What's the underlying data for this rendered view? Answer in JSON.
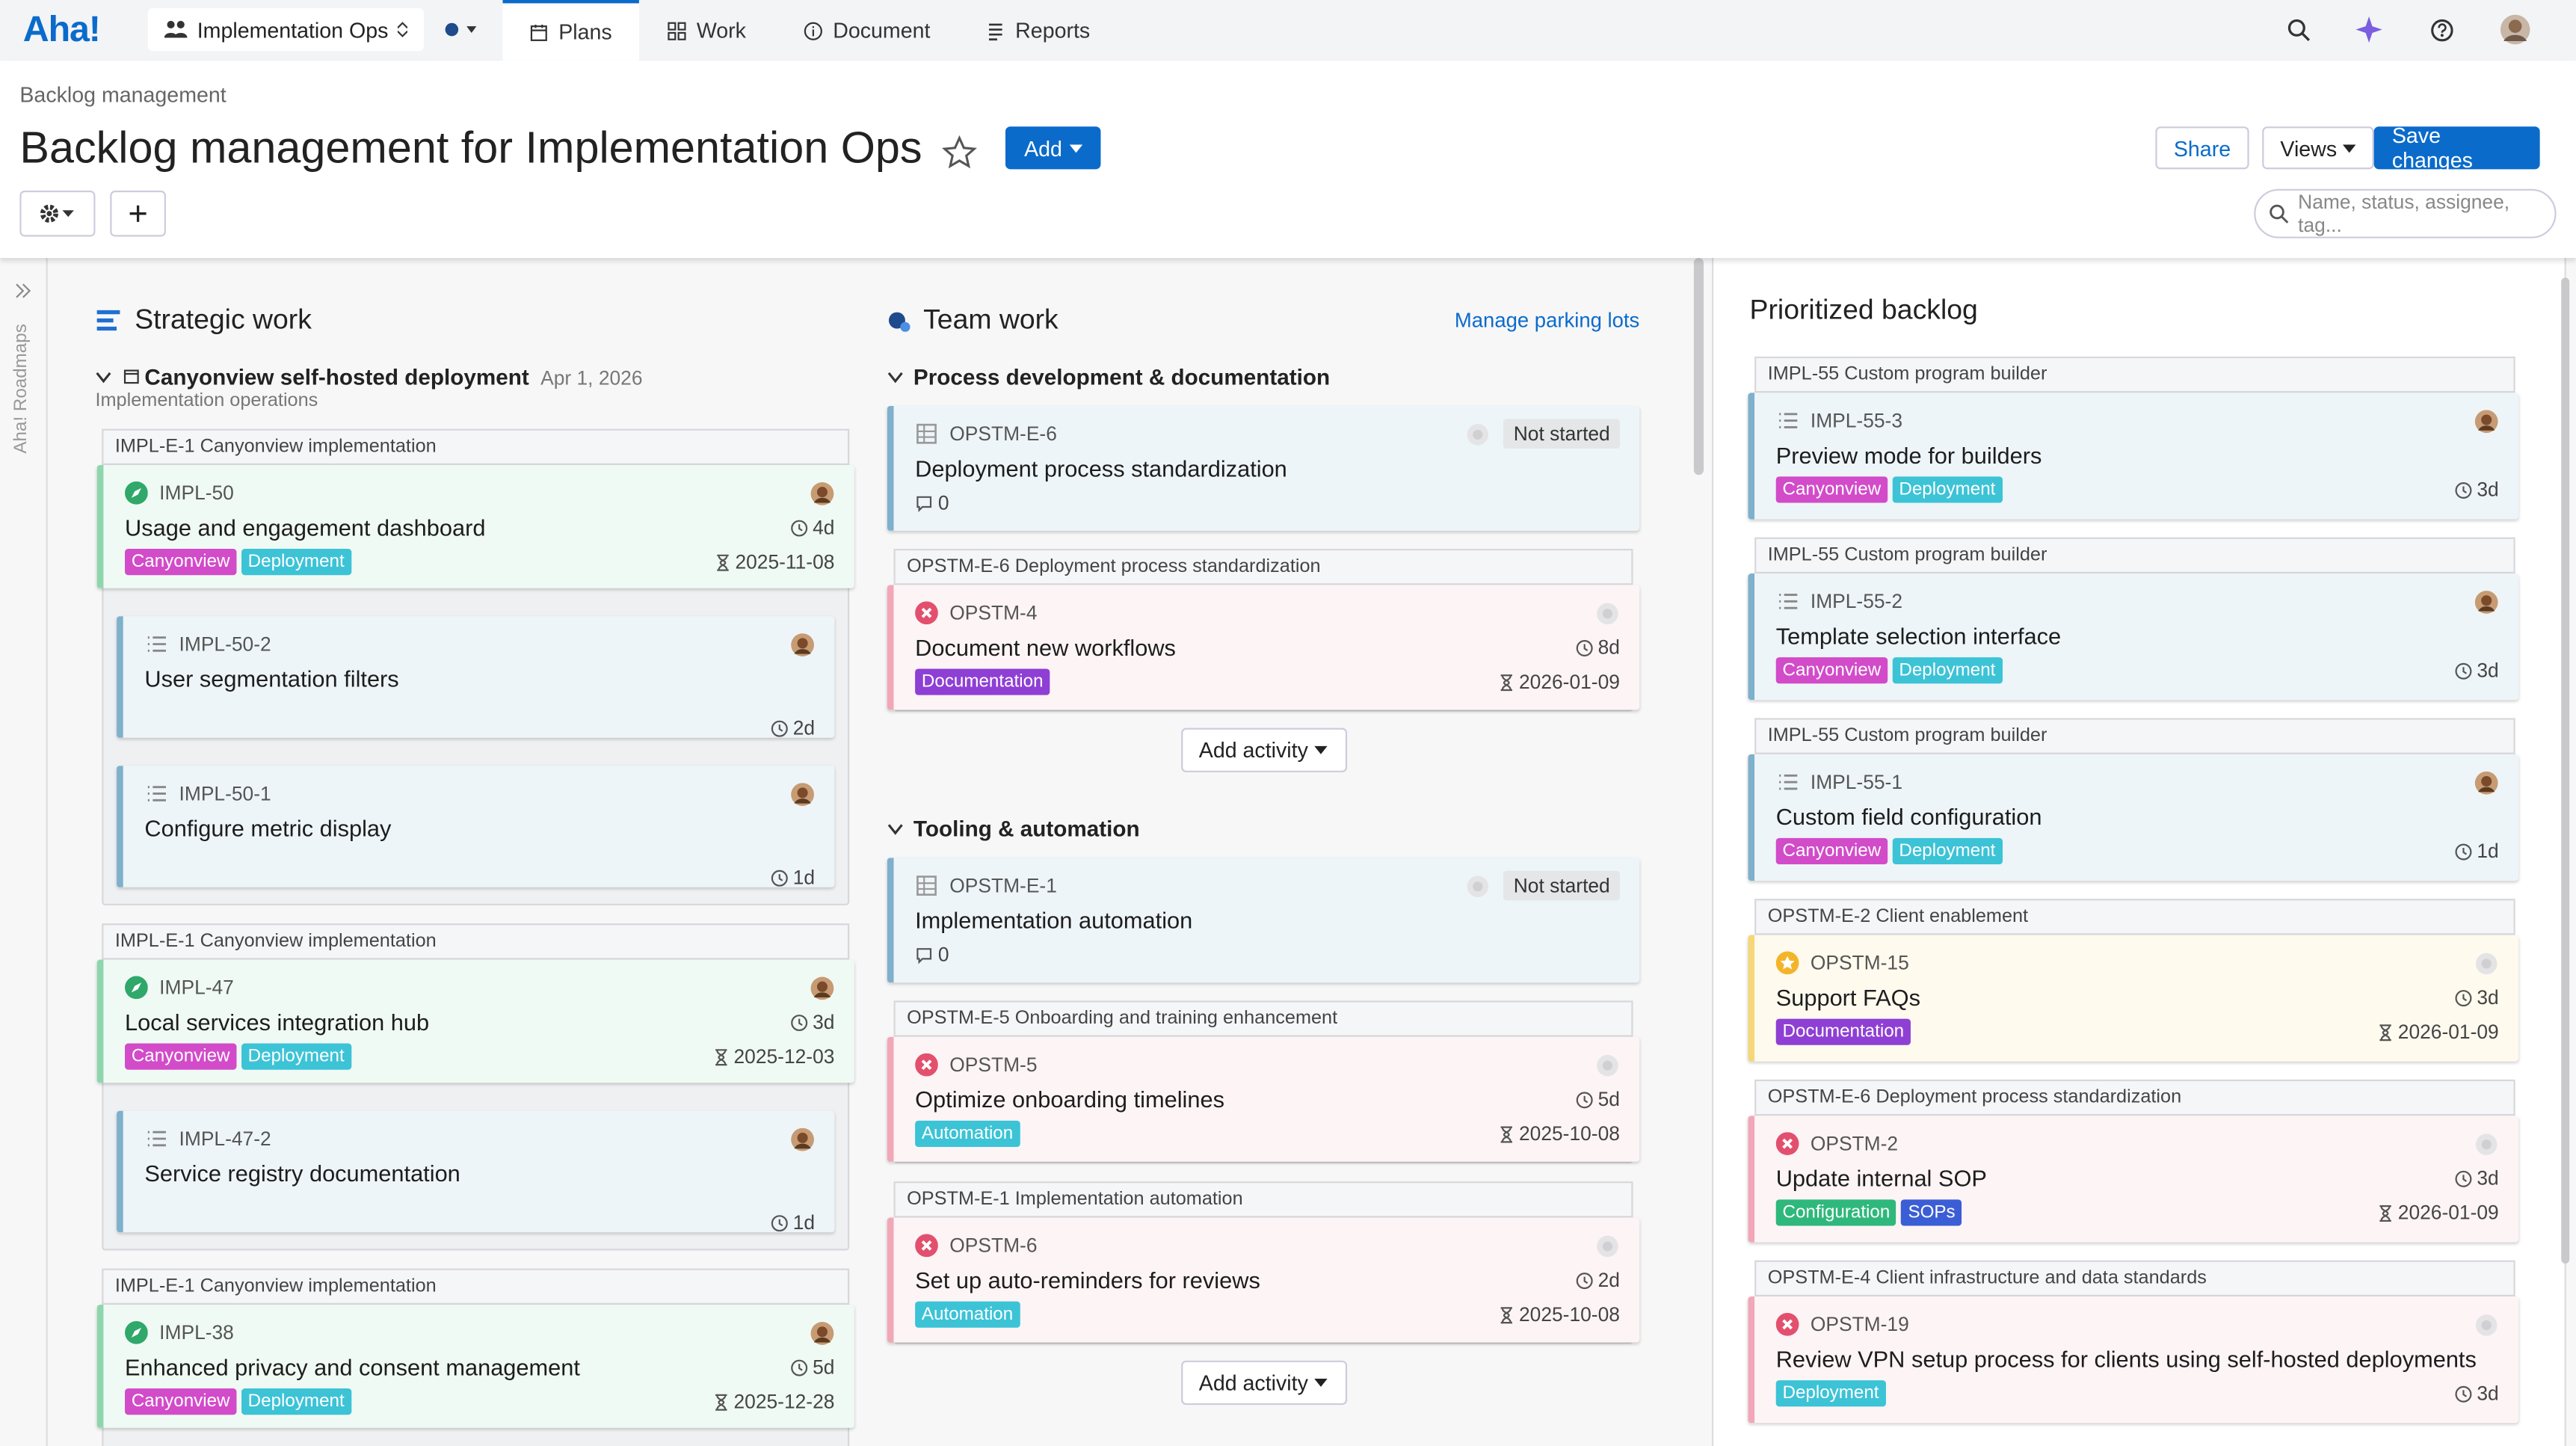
{
  "nav": {
    "logo": "Aha!",
    "workspace": "Implementation Ops",
    "tabs": [
      "Plans",
      "Work",
      "Document",
      "Reports"
    ],
    "active_tab": 0
  },
  "breadcrumb": "Backlog management",
  "title": "Backlog management for Implementation Ops",
  "buttons": {
    "add": "Add",
    "share": "Share",
    "views": "Views",
    "save": "Save changes"
  },
  "search_placeholder": "Name, status, assignee, tag...",
  "sidebar_label": "Aha! Roadmaps",
  "strategic": {
    "title": "Strategic work",
    "initiative": {
      "name": "Canyonview self-hosted deployment",
      "date": "Apr 1, 2026",
      "subtitle": "Implementation operations"
    },
    "groups": [
      {
        "parent": "IMPL-E-1 Canyonview implementation",
        "card": {
          "id": "IMPL-50",
          "title": "Usage and engagement dashboard",
          "icon": "feature",
          "avatar": "photo",
          "color": "#8fd6ad",
          "tags": [
            {
              "name": "Canyonview",
              "color": "#d24bc9"
            },
            {
              "name": "Deployment",
              "color": "#3cc3d6"
            }
          ],
          "estimate": "4d",
          "due": "2025-11-08"
        },
        "children": [
          {
            "id": "IMPL-50-2",
            "title": "User segmentation filters",
            "icon": "requirement",
            "avatar": "photo",
            "color": "#7fb0cc",
            "estimate": "2d"
          },
          {
            "id": "IMPL-50-1",
            "title": "Configure metric display",
            "icon": "requirement",
            "avatar": "photo",
            "color": "#7fb0cc",
            "estimate": "1d"
          }
        ]
      },
      {
        "parent": "IMPL-E-1 Canyonview implementation",
        "card": {
          "id": "IMPL-47",
          "title": "Local services integration hub",
          "icon": "feature",
          "avatar": "photo",
          "color": "#8fd6ad",
          "tags": [
            {
              "name": "Canyonview",
              "color": "#d24bc9"
            },
            {
              "name": "Deployment",
              "color": "#3cc3d6"
            }
          ],
          "estimate": "3d",
          "due": "2025-12-03"
        },
        "children": [
          {
            "id": "IMPL-47-2",
            "title": "Service registry documentation",
            "icon": "requirement",
            "avatar": "photo",
            "color": "#7fb0cc",
            "estimate": "1d"
          }
        ]
      },
      {
        "parent": "IMPL-E-1 Canyonview implementation",
        "card": {
          "id": "IMPL-38",
          "title": "Enhanced privacy and consent management",
          "icon": "feature",
          "avatar": "photo",
          "color": "#8fd6ad",
          "tags": [
            {
              "name": "Canyonview",
              "color": "#d24bc9"
            },
            {
              "name": "Deployment",
              "color": "#3cc3d6"
            }
          ],
          "estimate": "5d",
          "due": "2025-12-28"
        },
        "children": []
      }
    ]
  },
  "team": {
    "title": "Team work",
    "manage": "Manage parking lots",
    "add_activity": "Add activity",
    "sections": [
      {
        "name": "Process development & documentation",
        "items": [
          {
            "card": {
              "id": "OPSTM-E-6",
              "title": "Deployment process standardization",
              "icon": "epic",
              "avatar": "empty",
              "color": "#7fb0cc",
              "status": "Not started",
              "comments": 0
            }
          },
          {
            "parent": "OPSTM-E-6 Deployment process standardization",
            "card": {
              "id": "OPSTM-4",
              "title": "Document new workflows",
              "icon": "red",
              "avatar": "empty",
              "color": "#f2a7b8",
              "tags": [
                {
                  "name": "Documentation",
                  "color": "#8e3fd4"
                }
              ],
              "estimate": "8d",
              "due": "2026-01-09"
            }
          }
        ]
      },
      {
        "name": "Tooling & automation",
        "items": [
          {
            "card": {
              "id": "OPSTM-E-1",
              "title": "Implementation automation",
              "icon": "epic",
              "avatar": "empty",
              "color": "#7fb0cc",
              "status": "Not started",
              "comments": 0
            }
          },
          {
            "parent": "OPSTM-E-5 Onboarding and training enhancement",
            "card": {
              "id": "OPSTM-5",
              "title": "Optimize onboarding timelines",
              "icon": "red",
              "avatar": "empty",
              "color": "#f2a7b8",
              "tags": [
                {
                  "name": "Automation",
                  "color": "#3cc3d6"
                }
              ],
              "estimate": "5d",
              "due": "2025-10-08"
            }
          },
          {
            "parent": "OPSTM-E-1 Implementation automation",
            "card": {
              "id": "OPSTM-6",
              "title": "Set up auto-reminders for reviews",
              "icon": "red",
              "avatar": "empty",
              "color": "#f2a7b8",
              "tags": [
                {
                  "name": "Automation",
                  "color": "#3cc3d6"
                }
              ],
              "estimate": "2d",
              "due": "2025-10-08"
            }
          }
        ]
      }
    ]
  },
  "backlog": {
    "title": "Prioritized backlog",
    "items": [
      {
        "parent": "IMPL-55 Custom program builder",
        "card": {
          "id": "IMPL-55-3",
          "title": "Preview mode for builders",
          "icon": "requirement",
          "avatar": "photo",
          "color": "#7fb0cc",
          "tags": [
            {
              "name": "Canyonview",
              "color": "#d24bc9"
            },
            {
              "name": "Deployment",
              "color": "#3cc3d6"
            }
          ],
          "estimate": "3d"
        }
      },
      {
        "parent": "IMPL-55 Custom program builder",
        "card": {
          "id": "IMPL-55-2",
          "title": "Template selection interface",
          "icon": "requirement",
          "avatar": "photo",
          "color": "#7fb0cc",
          "tags": [
            {
              "name": "Canyonview",
              "color": "#d24bc9"
            },
            {
              "name": "Deployment",
              "color": "#3cc3d6"
            }
          ],
          "estimate": "3d"
        }
      },
      {
        "parent": "IMPL-55 Custom program builder",
        "card": {
          "id": "IMPL-55-1",
          "title": "Custom field configuration",
          "icon": "requirement",
          "avatar": "photo",
          "color": "#7fb0cc",
          "tags": [
            {
              "name": "Canyonview",
              "color": "#d24bc9"
            },
            {
              "name": "Deployment",
              "color": "#3cc3d6"
            }
          ],
          "estimate": "1d"
        }
      },
      {
        "parent": "OPSTM-E-2 Client enablement",
        "card": {
          "id": "OPSTM-15",
          "title": "Support FAQs",
          "icon": "star",
          "avatar": "empty",
          "color": "#f5d77a",
          "tags": [
            {
              "name": "Documentation",
              "color": "#8e3fd4"
            }
          ],
          "estimate": "3d",
          "due": "2026-01-09"
        }
      },
      {
        "parent": "OPSTM-E-6 Deployment process standardization",
        "card": {
          "id": "OPSTM-2",
          "title": "Update internal SOP",
          "icon": "red",
          "avatar": "empty",
          "color": "#f2a7b8",
          "tags": [
            {
              "name": "Configuration",
              "color": "#2fb87c"
            },
            {
              "name": "SOPs",
              "color": "#3b5ed6"
            }
          ],
          "estimate": "3d",
          "due": "2026-01-09"
        }
      },
      {
        "parent": "OPSTM-E-4 Client infrastructure and data standards",
        "card": {
          "id": "OPSTM-19",
          "title": "Review VPN setup process for clients using self-hosted deployments",
          "icon": "red",
          "avatar": "empty",
          "color": "#f2a7b8",
          "tags": [
            {
              "name": "Deployment",
              "color": "#3cc3d6"
            }
          ],
          "estimate": "3d"
        }
      }
    ]
  }
}
